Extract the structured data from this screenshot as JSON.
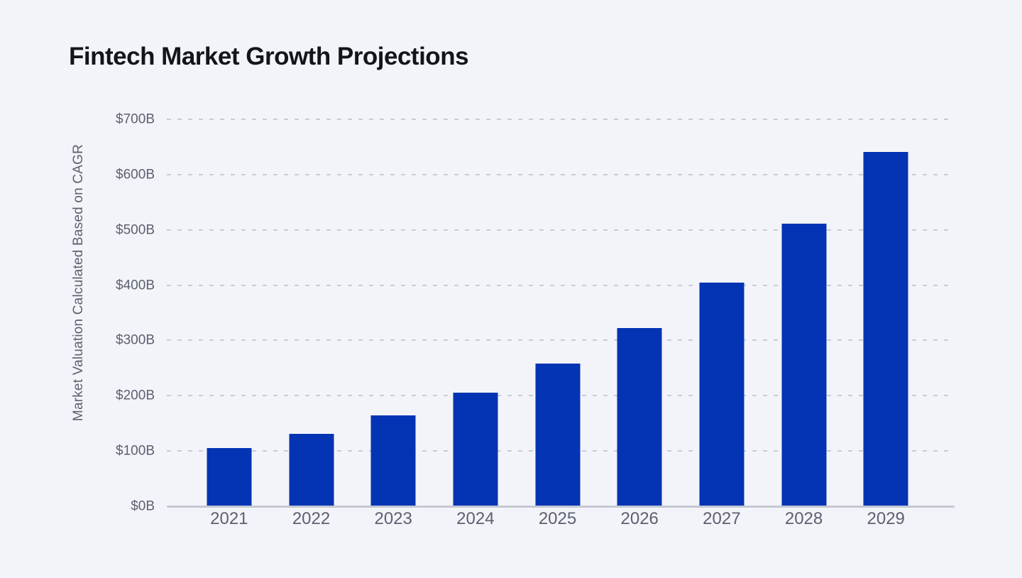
{
  "page": {
    "background": "#f3f4f9"
  },
  "chart_data": {
    "type": "bar",
    "title": "Fintech Market Growth Projections",
    "xlabel": "",
    "ylabel": "Market Valuation Calculated Based on CAGR",
    "categories": [
      "2021",
      "2022",
      "2023",
      "2024",
      "2025",
      "2026",
      "2027",
      "2028",
      "2029"
    ],
    "values": [
      105,
      131,
      165,
      205,
      258,
      322,
      404,
      511,
      641
    ],
    "value_unit": "$B",
    "ylim": [
      0,
      700
    ],
    "ytick_step": 100,
    "ytick_labels": [
      "$0B",
      "$100B",
      "$200B",
      "$300B",
      "$400B",
      "$500B",
      "$600B",
      "$700B"
    ],
    "grid": {
      "horizontal": true,
      "vertical": false,
      "style": "dashed"
    },
    "legend": "none",
    "colors": {
      "bar": "#0434b4",
      "grid_line": "#c7ccd8",
      "axis_line": "#c3c8d3",
      "tick_text": "#5b6170",
      "title_text": "#13151c",
      "background": "#f3f4f9"
    }
  }
}
